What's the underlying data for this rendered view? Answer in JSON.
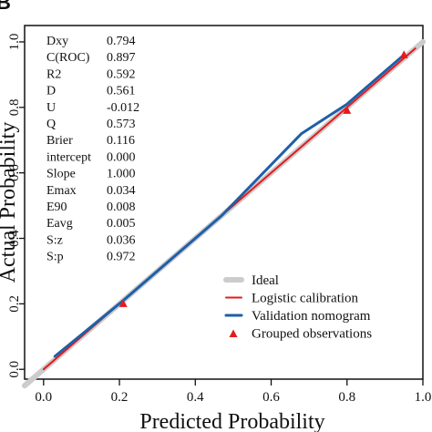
{
  "panel_label": "B",
  "chart_data": {
    "type": "line",
    "xlabel": "Predicted Probability",
    "ylabel": "Actual Probability",
    "xlim": [
      -0.05,
      1.0
    ],
    "ylim": [
      -0.03,
      1.05
    ],
    "x_ticks": [
      "0.0",
      "0.2",
      "0.4",
      "0.6",
      "0.8",
      "1.0"
    ],
    "y_ticks": [
      "0.0",
      "0.2",
      "0.4",
      "0.6",
      "0.8",
      "1.0"
    ],
    "grid": false,
    "legend_position": "bottom-right",
    "series": [
      {
        "name": "Ideal",
        "color": "#cccccc",
        "x": [
          -0.05,
          1.0
        ],
        "y": [
          -0.05,
          1.0
        ]
      },
      {
        "name": "Logistic calibration",
        "color": "#e41a1c",
        "x": [
          0.0,
          0.98
        ],
        "y": [
          0.0,
          0.98
        ]
      },
      {
        "name": "Validation nomogram",
        "color": "#1f5fa8",
        "x": [
          0.03,
          0.21,
          0.47,
          0.68,
          0.8,
          0.95
        ],
        "y": [
          0.04,
          0.21,
          0.47,
          0.72,
          0.81,
          0.96
        ]
      },
      {
        "name": "Grouped observations",
        "color": "#e41a1c",
        "marker": "triangle",
        "x": [
          0.21,
          0.8,
          0.95
        ],
        "y": [
          0.2,
          0.79,
          0.96
        ]
      }
    ],
    "stats": [
      {
        "label": "Dxy",
        "value": "0.794"
      },
      {
        "label": "C(ROC)",
        "value": "0.897"
      },
      {
        "label": "R2",
        "value": "0.592"
      },
      {
        "label": "D",
        "value": "0.561"
      },
      {
        "label": "U",
        "value": "-0.012"
      },
      {
        "label": "Q",
        "value": "0.573"
      },
      {
        "label": "Brier",
        "value": "0.116"
      },
      {
        "label": "intercept",
        "value": "0.000"
      },
      {
        "label": "Slope",
        "value": "1.000"
      },
      {
        "label": "Emax",
        "value": "0.034"
      },
      {
        "label": "E90",
        "value": "0.008"
      },
      {
        "label": "Eavg",
        "value": "0.005"
      },
      {
        "label": "S:z",
        "value": "0.036"
      },
      {
        "label": "S:p",
        "value": "0.972"
      }
    ]
  }
}
